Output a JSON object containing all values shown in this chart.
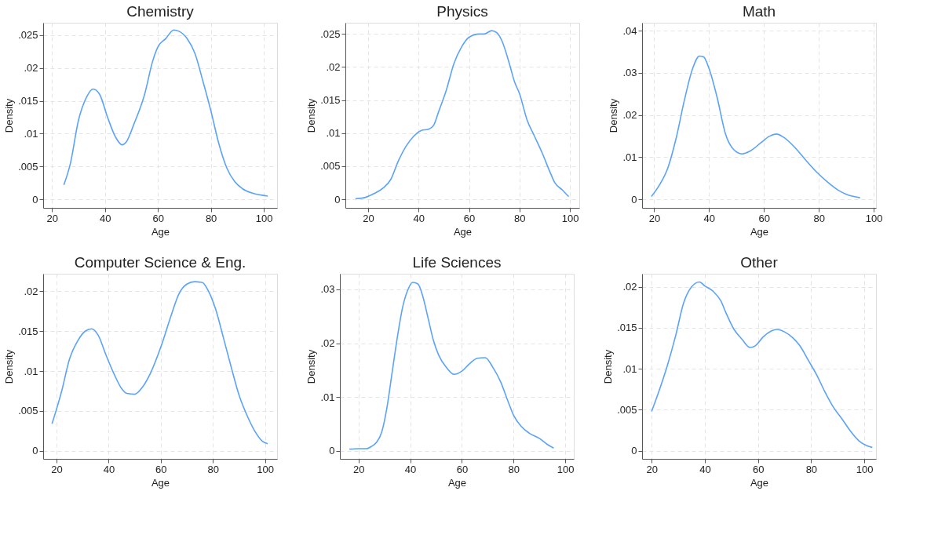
{
  "chart_data": [
    {
      "type": "line",
      "title": "Chemistry",
      "xlabel": "Age",
      "ylabel": "Density",
      "grid": true,
      "xlim": [
        16.7,
        105
      ],
      "ylim": [
        -0.0013,
        0.0269
      ],
      "xticks": [
        20,
        40,
        60,
        80,
        100
      ],
      "yticks": [
        0,
        {
          "value": 0.005,
          "label": ".005"
        },
        {
          "value": 0.01,
          "label": ".01"
        },
        {
          "value": 0.015,
          "label": ".015"
        },
        {
          "value": 0.02,
          "label": ".02"
        },
        {
          "value": 0.025,
          "label": ".025"
        }
      ],
      "series": [
        {
          "color": "#5aa2fa",
          "x": [
            24.5,
            27,
            30,
            33,
            35.5,
            38,
            41,
            44,
            46.5,
            48,
            51,
            55,
            58,
            60,
            63,
            66,
            68,
            71,
            74,
            77,
            80,
            83,
            86,
            89,
            92,
            96,
            101.5
          ],
          "values": [
            0.0022,
            0.0055,
            0.012,
            0.0155,
            0.0168,
            0.016,
            0.0125,
            0.0095,
            0.0083,
            0.0087,
            0.0115,
            0.016,
            0.021,
            0.0232,
            0.0245,
            0.0258,
            0.0256,
            0.0245,
            0.0222,
            0.018,
            0.0135,
            0.0085,
            0.0048,
            0.0027,
            0.0016,
            0.0009,
            0.0005
          ]
        }
      ]
    },
    {
      "type": "line",
      "title": "Physics",
      "xlabel": "Age",
      "ylabel": "Density",
      "grid": true,
      "xlim": [
        11,
        103.7
      ],
      "ylim": [
        -0.0013,
        0.0267
      ],
      "xticks": [
        20,
        40,
        60,
        80,
        100
      ],
      "yticks": [
        0,
        {
          "value": 0.005,
          "label": ".005"
        },
        {
          "value": 0.01,
          "label": ".01"
        },
        {
          "value": 0.015,
          "label": ".015"
        },
        {
          "value": 0.02,
          "label": ".02"
        },
        {
          "value": 0.025,
          "label": ".025"
        }
      ],
      "series": [
        {
          "color": "#5aa2fa",
          "x": [
            15,
            18,
            22,
            26,
            29,
            32,
            35,
            38,
            41,
            44,
            46,
            48,
            51,
            54,
            57,
            60,
            64,
            66,
            69,
            71,
            73,
            76,
            78,
            80,
            83,
            86,
            89,
            92,
            94,
            97,
            99.5
          ],
          "values": [
            0.0001,
            0.0002,
            0.0008,
            0.0017,
            0.003,
            0.0058,
            0.008,
            0.0095,
            0.0104,
            0.0106,
            0.0112,
            0.0133,
            0.0165,
            0.0205,
            0.023,
            0.0245,
            0.025,
            0.025,
            0.0255,
            0.0252,
            0.024,
            0.0205,
            0.0178,
            0.016,
            0.012,
            0.0095,
            0.007,
            0.0042,
            0.0025,
            0.0014,
            0.0004
          ]
        }
      ]
    },
    {
      "type": "line",
      "title": "Math",
      "xlabel": "Age",
      "ylabel": "Density",
      "grid": true,
      "xlim": [
        15.6,
        100.8
      ],
      "ylim": [
        -0.002,
        0.0419
      ],
      "xticks": [
        20,
        40,
        60,
        80,
        100
      ],
      "yticks": [
        0,
        {
          "value": 0.01,
          "label": ".01"
        },
        {
          "value": 0.02,
          "label": ".02"
        },
        {
          "value": 0.03,
          "label": ".03"
        },
        {
          "value": 0.04,
          "label": ".04"
        }
      ],
      "series": [
        {
          "color": "#5aa2fa",
          "x": [
            19,
            22,
            25,
            28,
            31,
            34,
            36.5,
            38,
            40,
            43,
            46,
            49,
            52,
            55,
            59,
            62,
            64.5,
            67,
            71,
            75,
            79,
            83,
            87,
            90,
            95
          ],
          "values": [
            0.0007,
            0.0035,
            0.0075,
            0.0145,
            0.0235,
            0.031,
            0.034,
            0.0338,
            0.031,
            0.024,
            0.0155,
            0.0118,
            0.0108,
            0.0115,
            0.0135,
            0.015,
            0.0155,
            0.0148,
            0.0125,
            0.0095,
            0.0066,
            0.0042,
            0.0022,
            0.0012,
            0.0004
          ]
        }
      ]
    },
    {
      "type": "line",
      "title": "Computer Science & Eng.",
      "xlabel": "Age",
      "ylabel": "Density",
      "grid": true,
      "xlim": [
        14.9,
        104.6
      ],
      "ylim": [
        -0.001,
        0.0222
      ],
      "xticks": [
        20,
        40,
        60,
        80,
        100
      ],
      "yticks": [
        0,
        {
          "value": 0.005,
          "label": ".005"
        },
        {
          "value": 0.01,
          "label": ".01"
        },
        {
          "value": 0.015,
          "label": ".015"
        },
        {
          "value": 0.02,
          "label": ".02"
        }
      ],
      "series": [
        {
          "color": "#5aa2fa",
          "x": [
            18.3,
            22,
            25,
            28,
            31,
            33.5,
            36,
            39,
            42,
            45,
            47,
            50,
            53,
            56,
            60,
            64,
            67,
            70,
            73,
            76,
            78,
            81,
            84,
            87,
            90,
            93,
            96,
            99,
            101
          ],
          "values": [
            0.0034,
            0.0075,
            0.0115,
            0.0137,
            0.015,
            0.0153,
            0.0145,
            0.012,
            0.0097,
            0.0078,
            0.0072,
            0.0071,
            0.008,
            0.0097,
            0.013,
            0.017,
            0.0197,
            0.0209,
            0.0212,
            0.0211,
            0.0202,
            0.0178,
            0.0142,
            0.0105,
            0.007,
            0.0045,
            0.0025,
            0.0012,
            0.0009
          ]
        }
      ]
    },
    {
      "type": "line",
      "title": "Life Sciences",
      "xlabel": "Age",
      "ylabel": "Density",
      "grid": true,
      "xlim": [
        12.8,
        103.3
      ],
      "ylim": [
        -0.0015,
        0.0329
      ],
      "xticks": [
        20,
        40,
        60,
        80,
        100
      ],
      "yticks": [
        0,
        {
          "value": 0.01,
          "label": ".01"
        },
        {
          "value": 0.02,
          "label": ".02"
        },
        {
          "value": 0.03,
          "label": ".03"
        }
      ],
      "series": [
        {
          "color": "#5aa2fa",
          "x": [
            16.5,
            20,
            23,
            25,
            27,
            29,
            31,
            33,
            35,
            37,
            39,
            41,
            43,
            45,
            47,
            49,
            51,
            54,
            57,
            60,
            63,
            66,
            69,
            72,
            75,
            78,
            80,
            83,
            86,
            90,
            93,
            95.5
          ],
          "values": [
            0.0003,
            0.0004,
            0.0004,
            0.0008,
            0.0016,
            0.0035,
            0.008,
            0.0145,
            0.021,
            0.0265,
            0.0298,
            0.0313,
            0.031,
            0.0285,
            0.0245,
            0.0205,
            0.0178,
            0.0155,
            0.0142,
            0.0148,
            0.0162,
            0.0172,
            0.0173,
            0.0155,
            0.0128,
            0.009,
            0.0066,
            0.0045,
            0.0033,
            0.0023,
            0.0012,
            0.0005
          ]
        }
      ]
    },
    {
      "type": "line",
      "title": "Other",
      "xlabel": "Age",
      "ylabel": "Density",
      "grid": true,
      "xlim": [
        16.4,
        104.4
      ],
      "ylim": [
        -0.001,
        0.0216
      ],
      "xticks": [
        20,
        40,
        60,
        80,
        100
      ],
      "yticks": [
        0,
        {
          "value": 0.005,
          "label": ".005"
        },
        {
          "value": 0.01,
          "label": ".01"
        },
        {
          "value": 0.015,
          "label": ".015"
        },
        {
          "value": 0.02,
          "label": ".02"
        }
      ],
      "series": [
        {
          "color": "#5aa2fa",
          "x": [
            20,
            23,
            26,
            29,
            32,
            35,
            38,
            40,
            43,
            46,
            48,
            51,
            54,
            57,
            59,
            62,
            65,
            67,
            70,
            73,
            76,
            79,
            82,
            85,
            88,
            92,
            95,
            98,
            101,
            103
          ],
          "values": [
            0.0048,
            0.0075,
            0.0105,
            0.014,
            0.018,
            0.02,
            0.0206,
            0.0201,
            0.0195,
            0.0183,
            0.0168,
            0.0148,
            0.0136,
            0.0126,
            0.0128,
            0.0139,
            0.0146,
            0.0148,
            0.0145,
            0.0138,
            0.0127,
            0.011,
            0.0093,
            0.0073,
            0.0055,
            0.0037,
            0.0023,
            0.0012,
            0.0006,
            0.0004
          ]
        }
      ]
    }
  ]
}
